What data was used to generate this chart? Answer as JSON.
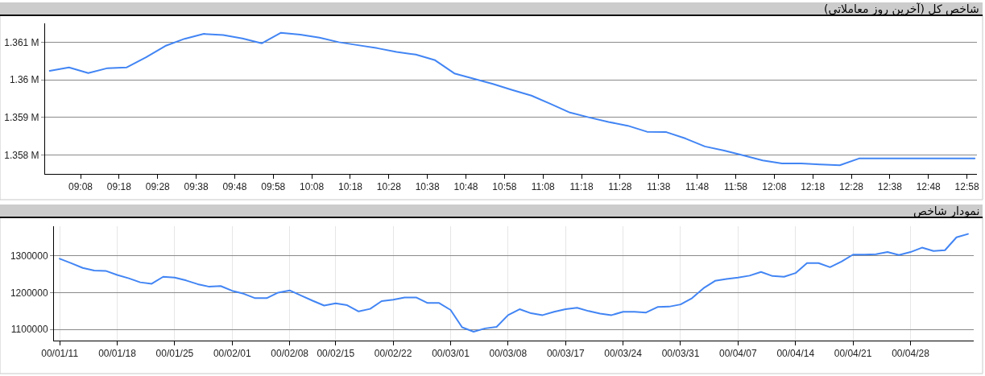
{
  "chart_data": [
    {
      "type": "line",
      "title": "شاخص کل (آخرین روز معاملاتی)",
      "x": [
        9,
        9.0833,
        9.1667,
        9.25,
        9.3333,
        9.4167,
        9.5,
        9.5833,
        9.6667,
        9.75,
        9.8333,
        9.9167,
        10,
        10.0833,
        10.1667,
        10.25,
        10.3333,
        10.4167,
        10.5,
        10.5833,
        10.6667,
        10.75,
        10.8333,
        10.9167,
        11,
        11.0833,
        11.1667,
        11.25,
        11.3333,
        11.4167,
        11.5,
        11.5833,
        11.6667,
        11.75,
        11.8333,
        11.9167,
        12,
        12.0833,
        12.1667,
        12.25,
        12.3333,
        12.4167,
        12.5,
        12.5833,
        12.6667,
        12.75,
        12.8333,
        12.9167,
        13
      ],
      "values": [
        1360240,
        1360330,
        1360180,
        1360310,
        1360330,
        1360600,
        1360900,
        1361090,
        1361220,
        1361190,
        1361100,
        1360970,
        1361250,
        1361200,
        1361120,
        1361000,
        1360920,
        1360840,
        1360740,
        1360670,
        1360520,
        1360170,
        1360030,
        1359890,
        1359730,
        1359580,
        1359360,
        1359130,
        1359000,
        1358880,
        1358780,
        1358620,
        1358610,
        1358440,
        1358230,
        1358120,
        1357990,
        1357860,
        1357780,
        1357780,
        1357750,
        1357730,
        1357910,
        1357910,
        1357910,
        1357910,
        1357910,
        1357910,
        1357910
      ],
      "color": "#4285f4",
      "xlim": [
        8.98,
        13.01
      ],
      "xticks": [
        {
          "value": 9.1333,
          "label": "09:08"
        },
        {
          "value": 9.3,
          "label": "09:18"
        },
        {
          "value": 9.4667,
          "label": "09:28"
        },
        {
          "value": 9.6333,
          "label": "09:38"
        },
        {
          "value": 9.8,
          "label": "09:48"
        },
        {
          "value": 9.9667,
          "label": "09:58"
        },
        {
          "value": 10.1333,
          "label": "10:08"
        },
        {
          "value": 10.3,
          "label": "10:18"
        },
        {
          "value": 10.4667,
          "label": "10:28"
        },
        {
          "value": 10.6333,
          "label": "10:38"
        },
        {
          "value": 10.8,
          "label": "10:48"
        },
        {
          "value": 10.9667,
          "label": "10:58"
        },
        {
          "value": 11.1333,
          "label": "11:08"
        },
        {
          "value": 11.3,
          "label": "11:18"
        },
        {
          "value": 11.4667,
          "label": "11:28"
        },
        {
          "value": 11.6333,
          "label": "11:38"
        },
        {
          "value": 11.8,
          "label": "11:48"
        },
        {
          "value": 11.9667,
          "label": "11:58"
        },
        {
          "value": 12.1333,
          "label": "12:08"
        },
        {
          "value": 12.3,
          "label": "12:18"
        },
        {
          "value": 12.4667,
          "label": "12:28"
        },
        {
          "value": 12.6333,
          "label": "12:38"
        },
        {
          "value": 12.8,
          "label": "12:48"
        },
        {
          "value": 12.9667,
          "label": "12:58"
        }
      ],
      "ylim": [
        1357500,
        1361500
      ],
      "yticks": [
        {
          "value": 1358000,
          "label": "1.358 M"
        },
        {
          "value": 1359000,
          "label": "1.359 M"
        },
        {
          "value": 1360000,
          "label": "1.36 M"
        },
        {
          "value": 1361000,
          "label": "1.361 M"
        }
      ],
      "grid": "y"
    },
    {
      "type": "line",
      "title": "نمودار شاخص",
      "categories": [
        "00/01/11",
        null,
        null,
        null,
        null,
        "00/01/18",
        null,
        null,
        null,
        null,
        "00/01/25",
        null,
        null,
        null,
        null,
        "00/02/01",
        null,
        null,
        null,
        null,
        "00/02/08",
        null,
        null,
        null,
        "00/02/15",
        null,
        null,
        null,
        null,
        "00/02/22",
        null,
        null,
        null,
        null,
        "00/03/01",
        null,
        null,
        null,
        null,
        "00/03/08",
        null,
        null,
        null,
        null,
        "00/03/17",
        null,
        null,
        null,
        null,
        "00/03/24",
        null,
        null,
        null,
        null,
        "00/03/31",
        null,
        null,
        null,
        null,
        "00/04/07",
        null,
        null,
        null,
        null,
        "00/04/14",
        null,
        null,
        null,
        null,
        "00/04/21",
        null,
        null,
        null,
        null,
        "00/04/28",
        null,
        null,
        null,
        null,
        null
      ],
      "values": [
        1292000,
        1280000,
        1267000,
        1260000,
        1259000,
        1248000,
        1239000,
        1228000,
        1224000,
        1243000,
        1241000,
        1233000,
        1223000,
        1216000,
        1218000,
        1205000,
        1197000,
        1185000,
        1185000,
        1200000,
        1206000,
        1192000,
        1178000,
        1165000,
        1171000,
        1166000,
        1149000,
        1156000,
        1177000,
        1181000,
        1187000,
        1187000,
        1172000,
        1172000,
        1153000,
        1106000,
        1094000,
        1103000,
        1107000,
        1139000,
        1155000,
        1144000,
        1139000,
        1148000,
        1155000,
        1159000,
        1150000,
        1143000,
        1139000,
        1148000,
        1148000,
        1146000,
        1161000,
        1162000,
        1168000,
        1185000,
        1212000,
        1232000,
        1237000,
        1241000,
        1246000,
        1256000,
        1245000,
        1243000,
        1253000,
        1280000,
        1280000,
        1269000,
        1284000,
        1303000,
        1303000,
        1304000,
        1310000,
        1302000,
        1310000,
        1322000,
        1313000,
        1315000,
        1350000,
        1359000
      ],
      "color": "#4285f4",
      "ylim": [
        1070000,
        1380000
      ],
      "yticks": [
        1100000,
        1200000,
        1300000
      ],
      "grid": true
    }
  ]
}
